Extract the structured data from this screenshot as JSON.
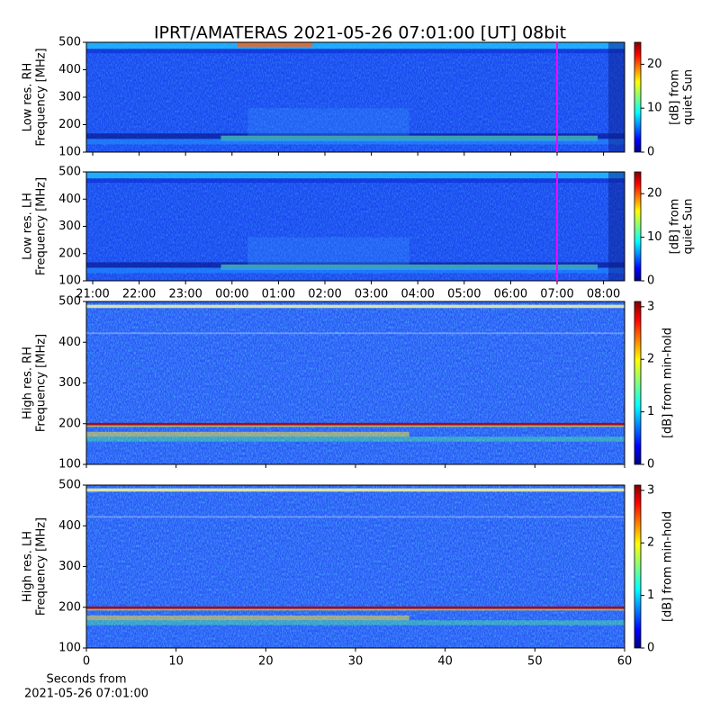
{
  "title": "IPRT/AMATERAS 2021-05-26 07:01:00 [UT]   08bit",
  "chart_data": [
    {
      "type": "heatmap",
      "ylabel": [
        "Low res. RH",
        "Frequency [MHz]"
      ],
      "ylim": [
        100,
        500
      ],
      "yticks": [
        100,
        200,
        300,
        400,
        500
      ],
      "colormap": "jet",
      "clim": [
        0,
        25
      ],
      "cticks": [
        0,
        10,
        20
      ],
      "clabel": [
        "[dB] from",
        "quiet Sun"
      ],
      "marker": "07:00",
      "marker_color": "#ff00ff"
    },
    {
      "type": "heatmap",
      "ylabel": [
        "Low res. LH",
        "Frequency [MHz]"
      ],
      "ylim": [
        100,
        500
      ],
      "yticks": [
        100,
        200,
        300,
        400,
        500
      ],
      "categories": [
        "21:00",
        "22:00",
        "23:00",
        "00:00",
        "01:00",
        "02:00",
        "03:00",
        "04:00",
        "05:00",
        "06:00",
        "07:00",
        "08:00"
      ],
      "colormap": "jet",
      "clim": [
        0,
        25
      ],
      "cticks": [
        0,
        10,
        20
      ],
      "clabel": [
        "[dB] from",
        "quiet Sun"
      ],
      "marker": "07:00",
      "marker_color": "#ff00ff"
    },
    {
      "type": "heatmap",
      "ylabel": [
        "High res. RH",
        "Frequency [MHz]"
      ],
      "ylim": [
        100,
        500
      ],
      "yticks": [
        100,
        200,
        300,
        400,
        500
      ],
      "xlim": [
        0,
        60
      ],
      "xticks": [
        0,
        10,
        20,
        30,
        40,
        50,
        60
      ],
      "colormap": "jet",
      "clim": [
        0,
        3.1
      ],
      "cticks": [
        0,
        1,
        2,
        3
      ],
      "clabel": [
        "[dB] from min-hold"
      ]
    },
    {
      "type": "heatmap",
      "ylabel": [
        "High res. LH",
        "Frequency [MHz]"
      ],
      "ylim": [
        100,
        500
      ],
      "yticks": [
        100,
        200,
        300,
        400,
        500
      ],
      "xlim": [
        0,
        60
      ],
      "xticks": [
        0,
        10,
        20,
        30,
        40,
        50,
        60
      ],
      "xlabel": [
        "Seconds from",
        "2021-05-26 07:01:00"
      ],
      "colormap": "jet",
      "clim": [
        0,
        3.1
      ],
      "cticks": [
        0,
        1,
        2,
        3
      ],
      "clabel": [
        "[dB] from min-hold"
      ]
    }
  ]
}
